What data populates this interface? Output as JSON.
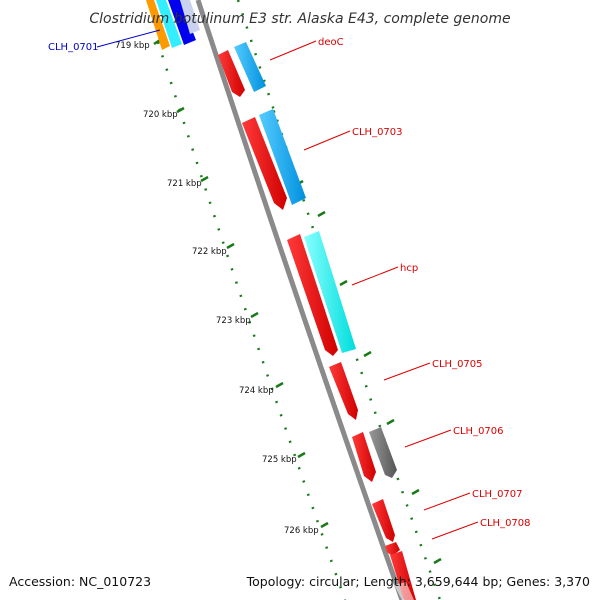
{
  "title": "Clostridium botulinum E3 str. Alaska E43, complete genome",
  "accession": "Accession: NC_010723",
  "summary": "Topology: circular; Length: 3,659,644 bp; Genes: 3,370",
  "ruler": {
    "ticks": [
      {
        "label": "719 kbp"
      },
      {
        "label": "720 kbp"
      },
      {
        "label": "721 kbp"
      },
      {
        "label": "722 kbp"
      },
      {
        "label": "723 kbp"
      },
      {
        "label": "724 kbp"
      },
      {
        "label": "725 kbp"
      },
      {
        "label": "726 kbp"
      }
    ]
  },
  "genes": [
    {
      "label": "CLH_0701",
      "color": "#0000cc"
    },
    {
      "label": "deoC",
      "color": "#dd0000"
    },
    {
      "label": "CLH_0703",
      "color": "#dd0000"
    },
    {
      "label": "hcp",
      "color": "#dd0000"
    },
    {
      "label": "CLH_0705",
      "color": "#dd0000"
    },
    {
      "label": "CLH_0706",
      "color": "#dd0000"
    },
    {
      "label": "CLH_0707",
      "color": "#dd0000"
    },
    {
      "label": "CLH_0708",
      "color": "#dd0000"
    }
  ],
  "colors": {
    "cds": "#ff0000",
    "cds_dark": "#b30000",
    "blast_blue": "#00aaff",
    "blast_cyan": "#00ffff",
    "blast_dark_blue": "#0000ee",
    "blast_orange": "#ff9900",
    "gray_feature": "#777777",
    "backbone": "#8a8a8a",
    "gc_dots": "#1a7a1a",
    "tick": "#1a7a1a",
    "label_line_red": "#dd0000",
    "label_line_blue": "#0000cc"
  }
}
